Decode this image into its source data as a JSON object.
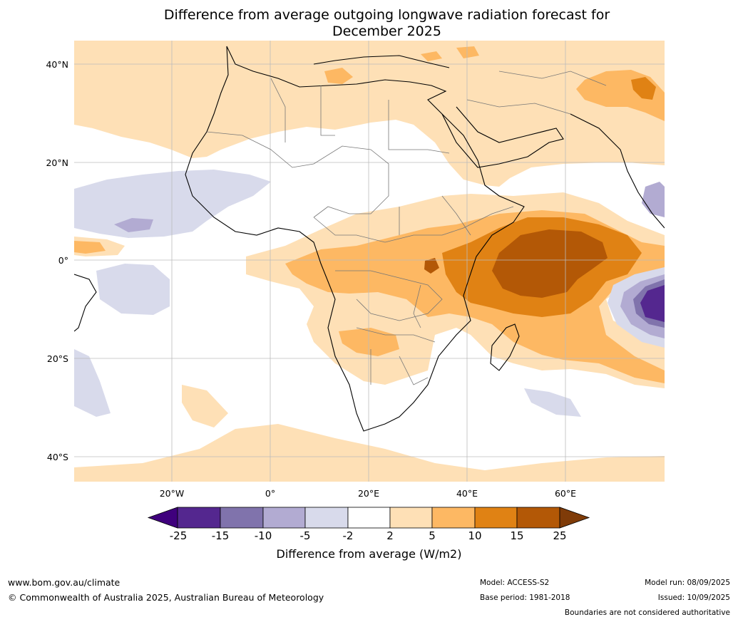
{
  "title_line1": "Difference from average outgoing longwave radiation forecast for",
  "title_line2": "December 2025",
  "lat_ticks": [
    "40°N",
    "20°N",
    "0°",
    "20°S",
    "40°S"
  ],
  "lon_ticks": [
    "20°W",
    "0°",
    "20°E",
    "40°E",
    "60°E"
  ],
  "colorbar": {
    "ticks": [
      "-25",
      "-15",
      "-10",
      "-5",
      "-2",
      "2",
      "5",
      "10",
      "15",
      "25"
    ],
    "colors": [
      "#3f007d",
      "#54278f",
      "#8073ac",
      "#b2abd2",
      "#d8daeb",
      "#ffffff",
      "#fee0b6",
      "#fdb863",
      "#e08214",
      "#b35806",
      "#7f3b08"
    ],
    "label": "Difference from average (W/m2)"
  },
  "footer": {
    "url": "www.bom.gov.au/climate",
    "copyright": "© Commonwealth of Australia 2025, Australian Bureau of Meteorology",
    "model": "Model: ACCESS-S2",
    "base_period": "Base period: 1981-2018",
    "model_run": "Model run: 08/09/2025",
    "issued": "Issued: 10/09/2025",
    "disclaimer": "Boundaries are not considered authoritative"
  }
}
